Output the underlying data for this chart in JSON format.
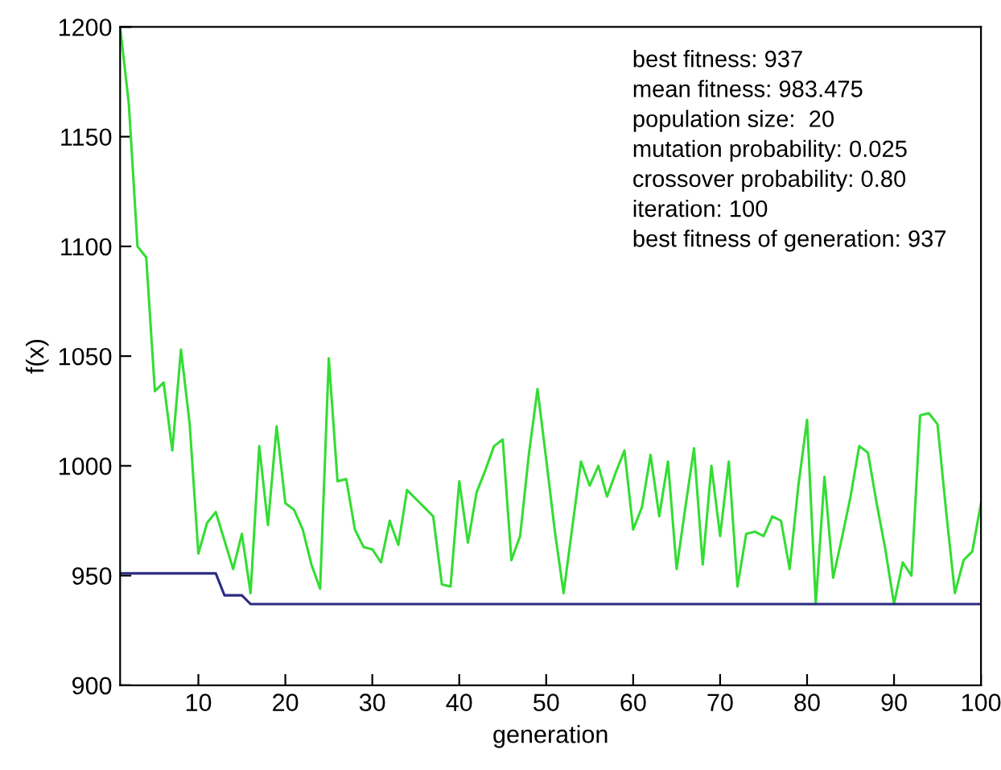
{
  "chart_data": {
    "type": "line",
    "xlabel": "generation",
    "ylabel": "f(x)",
    "x": [
      1,
      2,
      3,
      4,
      5,
      6,
      7,
      8,
      9,
      10,
      11,
      12,
      13,
      14,
      15,
      16,
      17,
      18,
      19,
      20,
      21,
      22,
      23,
      24,
      25,
      26,
      27,
      28,
      29,
      30,
      31,
      32,
      33,
      34,
      35,
      36,
      37,
      38,
      39,
      40,
      41,
      42,
      43,
      44,
      45,
      46,
      47,
      48,
      49,
      50,
      51,
      52,
      53,
      54,
      55,
      56,
      57,
      58,
      59,
      60,
      61,
      62,
      63,
      64,
      65,
      66,
      67,
      68,
      69,
      70,
      71,
      72,
      73,
      74,
      75,
      76,
      77,
      78,
      79,
      80,
      81,
      82,
      83,
      84,
      85,
      86,
      87,
      88,
      89,
      90,
      91,
      92,
      93,
      94,
      95,
      96,
      97,
      98,
      99,
      100
    ],
    "series": [
      {
        "color": "#33dd33",
        "values": [
          1200,
          1165,
          1100,
          1095,
          1034,
          1038,
          1007,
          1053,
          1019,
          960,
          974,
          979,
          966,
          953,
          969,
          942,
          1009,
          973,
          1018,
          983,
          980,
          971,
          955,
          944,
          1049,
          993,
          994,
          971,
          963,
          962,
          956,
          975,
          964,
          989,
          985,
          981,
          977,
          946,
          945,
          993,
          965,
          988,
          998,
          1009,
          1012,
          957,
          968,
          1005,
          1035,
          1003,
          970,
          942,
          972,
          1002,
          991,
          1000,
          986,
          997,
          1007,
          971,
          981,
          1005,
          977,
          1002,
          953,
          981,
          1008,
          955,
          1000,
          968,
          1002,
          945,
          969,
          970,
          968,
          977,
          975,
          953,
          991,
          1021,
          937,
          995,
          949,
          967,
          986,
          1009,
          1006,
          983,
          962,
          937,
          956,
          950,
          1023,
          1024,
          1019,
          979,
          942,
          957,
          961,
          983
        ]
      },
      {
        "color": "#2b2b80",
        "values": [
          951,
          951,
          951,
          951,
          951,
          951,
          951,
          951,
          951,
          951,
          951,
          951,
          941,
          941,
          941,
          937,
          937,
          937,
          937,
          937,
          937,
          937,
          937,
          937,
          937,
          937,
          937,
          937,
          937,
          937,
          937,
          937,
          937,
          937,
          937,
          937,
          937,
          937,
          937,
          937,
          937,
          937,
          937,
          937,
          937,
          937,
          937,
          937,
          937,
          937,
          937,
          937,
          937,
          937,
          937,
          937,
          937,
          937,
          937,
          937,
          937,
          937,
          937,
          937,
          937,
          937,
          937,
          937,
          937,
          937,
          937,
          937,
          937,
          937,
          937,
          937,
          937,
          937,
          937,
          937,
          937,
          937,
          937,
          937,
          937,
          937,
          937,
          937,
          937,
          937,
          937,
          937,
          937,
          937,
          937,
          937,
          937,
          937,
          937,
          937
        ]
      }
    ],
    "xlim": [
      1,
      100
    ],
    "xticks": [
      10,
      20,
      30,
      40,
      50,
      60,
      70,
      80,
      90,
      100
    ],
    "ylim": [
      900,
      1200
    ],
    "yticks": [
      900,
      950,
      1000,
      1050,
      1100,
      1150,
      1200
    ],
    "grid": false,
    "legend": false,
    "marker": "none",
    "line_style": "solid",
    "annotations": [
      "best fitness: 937",
      "mean fitness: 983.475",
      "population size:  20",
      "mutation probability: 0.025",
      "crossover probability: 0.80",
      "iteration: 100",
      "best fitness of generation: 937"
    ]
  }
}
